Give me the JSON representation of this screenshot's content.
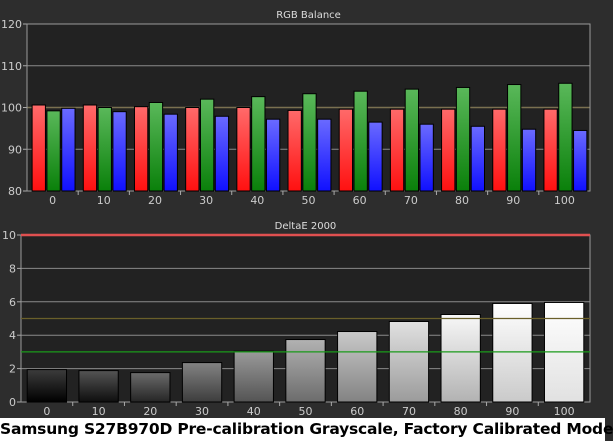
{
  "caption": "Samsung S27B970D Pre-calibration Grayscale, Factory Calibrated Mode",
  "chart_data": [
    {
      "type": "bar",
      "title": "RGB Balance",
      "categories": [
        "0",
        "10",
        "20",
        "30",
        "40",
        "50",
        "60",
        "70",
        "80",
        "90",
        "100"
      ],
      "ylim": [
        80,
        120
      ],
      "yticks": [
        80,
        90,
        100,
        110,
        120
      ],
      "grid": true,
      "reference_line": 100,
      "series": [
        {
          "color": "#ff2020",
          "values": [
            100.6,
            100.6,
            100.2,
            100.0,
            100.0,
            99.3,
            99.6,
            99.6,
            99.6,
            99.6,
            99.6
          ]
        },
        {
          "color": "#1a9a1a",
          "values": [
            99.2,
            100.0,
            101.2,
            102.0,
            102.6,
            103.3,
            103.9,
            104.4,
            104.8,
            105.5,
            105.8
          ]
        },
        {
          "color": "#2a2aff",
          "values": [
            99.8,
            99.0,
            98.4,
            97.9,
            97.2,
            97.2,
            96.5,
            96.0,
            95.5,
            94.8,
            94.5
          ]
        }
      ]
    },
    {
      "type": "bar",
      "title": "DeltaE 2000",
      "categories": [
        "0",
        "10",
        "20",
        "30",
        "40",
        "50",
        "60",
        "70",
        "80",
        "90",
        "100"
      ],
      "ylim": [
        0,
        10
      ],
      "yticks": [
        0,
        2,
        4,
        6,
        8,
        10
      ],
      "grid": true,
      "values": [
        1.94,
        1.88,
        1.76,
        2.36,
        3.04,
        3.74,
        4.22,
        4.82,
        5.24,
        5.9,
        5.96
      ],
      "threshold_lines": [
        {
          "value": 10,
          "color": "#e05050"
        },
        {
          "value": 5,
          "color": "#6a5f2a"
        },
        {
          "value": 3,
          "color": "#1a9a1a"
        }
      ]
    }
  ]
}
